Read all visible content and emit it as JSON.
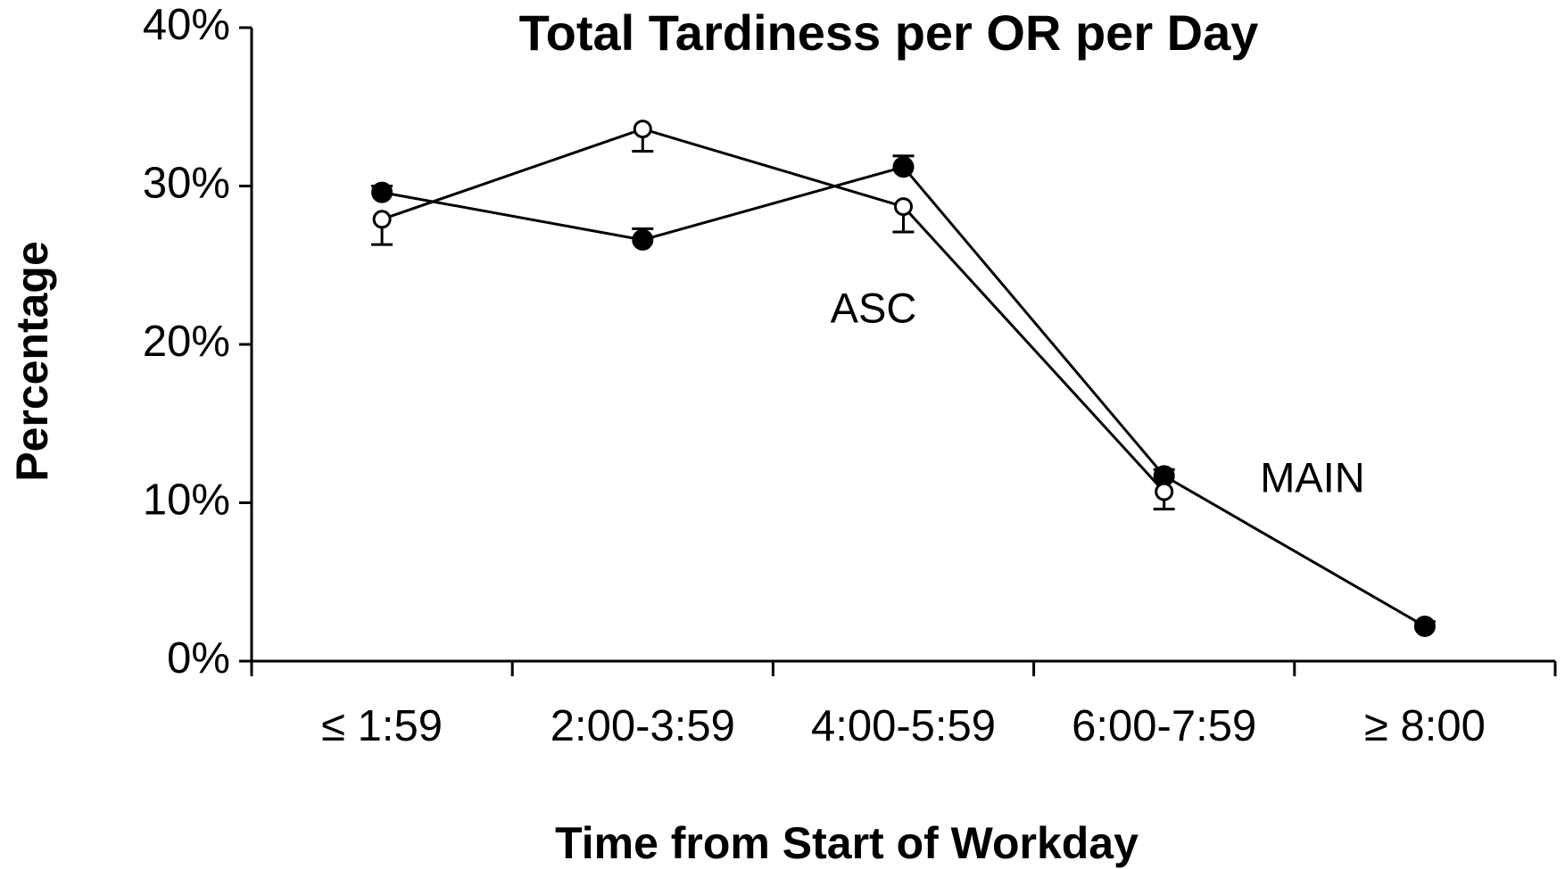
{
  "chart_data": {
    "type": "line",
    "title": "Total Tardiness per OR per Day",
    "xlabel": "Time from Start of Workday",
    "ylabel": "Percentage",
    "categories": [
      "≤ 1:59",
      "2:00-3:59",
      "4:00-5:59",
      "6:00-7:59",
      "≥ 8:00"
    ],
    "ylim": [
      0,
      40
    ],
    "yticks": [
      {
        "value": 0,
        "label": "0%"
      },
      {
        "value": 10,
        "label": "10%"
      },
      {
        "value": 20,
        "label": "20%"
      },
      {
        "value": 30,
        "label": "30%"
      },
      {
        "value": 40,
        "label": "40%"
      }
    ],
    "series": [
      {
        "marker": "filled",
        "color": "#000000",
        "values": [
          29.6,
          26.6,
          31.2,
          11.7,
          2.2
        ],
        "errors": [
          0.4,
          0.7,
          0.7,
          0.4,
          0.3
        ],
        "error_direction": "up"
      },
      {
        "marker": "open",
        "color": "#000000",
        "values": [
          27.9,
          33.6,
          28.7,
          10.7,
          null
        ],
        "errors": [
          1.6,
          1.4,
          1.6,
          1.1,
          null
        ],
        "error_direction": "down"
      }
    ],
    "annotations": [
      "ASC",
      "MAIN"
    ]
  }
}
